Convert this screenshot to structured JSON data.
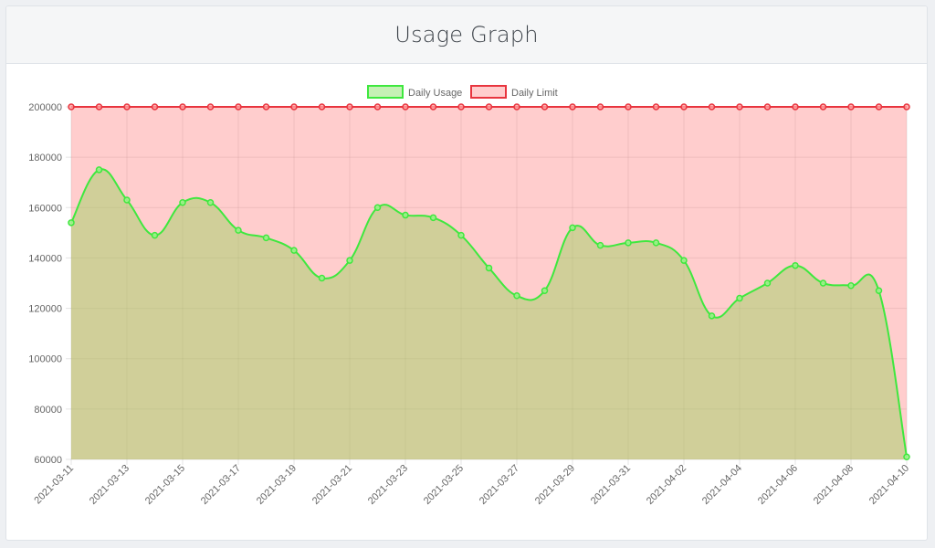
{
  "header": {
    "title": "Usage Graph"
  },
  "colors": {
    "usage_line": "#3ee83e",
    "usage_fill": "rgba(150,210,90,0.45)",
    "limit_line": "#e8343e",
    "limit_fill": "rgba(255,130,130,0.4)",
    "grid": "rgba(0,0,0,0.1)"
  },
  "chart_data": {
    "type": "area",
    "x": [
      "2021-03-11",
      "2021-03-12",
      "2021-03-13",
      "2021-03-14",
      "2021-03-15",
      "2021-03-16",
      "2021-03-17",
      "2021-03-18",
      "2021-03-19",
      "2021-03-20",
      "2021-03-21",
      "2021-03-22",
      "2021-03-23",
      "2021-03-24",
      "2021-03-25",
      "2021-03-26",
      "2021-03-27",
      "2021-03-28",
      "2021-03-29",
      "2021-03-30",
      "2021-03-31",
      "2021-04-01",
      "2021-04-02",
      "2021-04-03",
      "2021-04-04",
      "2021-04-05",
      "2021-04-06",
      "2021-04-07",
      "2021-04-08",
      "2021-04-09",
      "2021-04-10"
    ],
    "x_tick_labels": [
      "2021-03-11",
      "2021-03-13",
      "2021-03-15",
      "2021-03-17",
      "2021-03-19",
      "2021-03-21",
      "2021-03-23",
      "2021-03-25",
      "2021-03-27",
      "2021-03-29",
      "2021-03-31",
      "2021-04-02",
      "2021-04-04",
      "2021-04-06",
      "2021-04-08",
      "2021-04-10"
    ],
    "series": [
      {
        "name": "Daily Usage",
        "values": [
          154000,
          175000,
          163000,
          149000,
          162000,
          162000,
          151000,
          148000,
          143000,
          132000,
          139000,
          160000,
          157000,
          156000,
          149000,
          136000,
          125000,
          127000,
          152000,
          145000,
          146000,
          146000,
          139000,
          117000,
          124000,
          130000,
          137000,
          130000,
          129000,
          127000,
          61000
        ]
      },
      {
        "name": "Daily Limit",
        "values": [
          200000,
          200000,
          200000,
          200000,
          200000,
          200000,
          200000,
          200000,
          200000,
          200000,
          200000,
          200000,
          200000,
          200000,
          200000,
          200000,
          200000,
          200000,
          200000,
          200000,
          200000,
          200000,
          200000,
          200000,
          200000,
          200000,
          200000,
          200000,
          200000,
          200000,
          200000
        ]
      }
    ],
    "y_ticks": [
      "200000",
      "180000",
      "160000",
      "140000",
      "120000",
      "100000",
      "80000",
      "60000"
    ],
    "ylim": [
      60000,
      200000
    ],
    "legend_position": "top-center",
    "grid": true
  }
}
